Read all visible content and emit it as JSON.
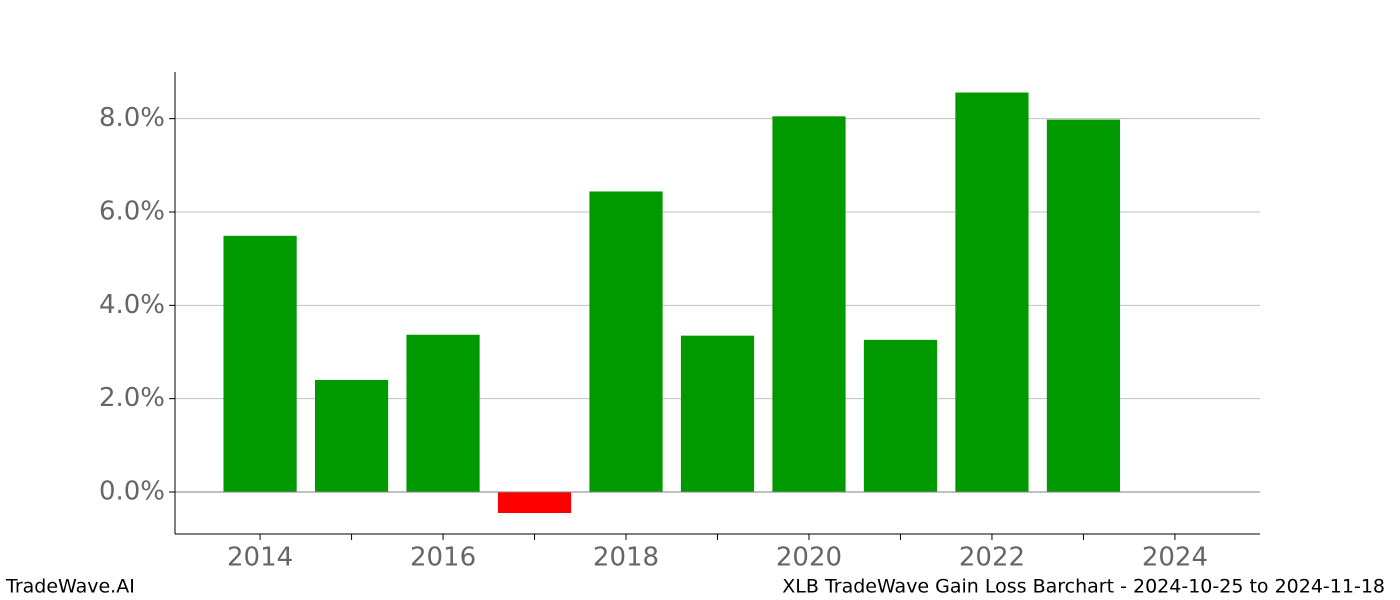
{
  "chart_data": {
    "type": "bar",
    "x": [
      2014,
      2015,
      2016,
      2017,
      2018,
      2019,
      2020,
      2021,
      2022,
      2023
    ],
    "values": [
      5.49,
      2.4,
      3.37,
      -0.45,
      6.44,
      3.35,
      8.05,
      3.26,
      8.56,
      7.98
    ],
    "colors": [
      "#009900",
      "#009900",
      "#009900",
      "#ff0000",
      "#009900",
      "#009900",
      "#009900",
      "#009900",
      "#009900",
      "#009900"
    ],
    "xlim": [
      2013.07,
      2024.93
    ],
    "xticks": [
      2014,
      2016,
      2018,
      2020,
      2022,
      2024
    ],
    "x_minor_ticks": [
      2015,
      2017,
      2019,
      2021,
      2023
    ],
    "ylim": [
      -0.9,
      9.0
    ],
    "yticks": [
      {
        "value": 0,
        "label": "0.0%"
      },
      {
        "value": 2,
        "label": "2.0%"
      },
      {
        "value": 4,
        "label": "4.0%"
      },
      {
        "value": 6,
        "label": "6.0%"
      },
      {
        "value": 8,
        "label": "8.0%"
      }
    ],
    "grid": true,
    "bar_width": 0.8
  },
  "footer": {
    "left": "TradeWave.AI",
    "right": "XLB TradeWave Gain Loss Barchart - 2024-10-25 to 2024-11-18"
  }
}
